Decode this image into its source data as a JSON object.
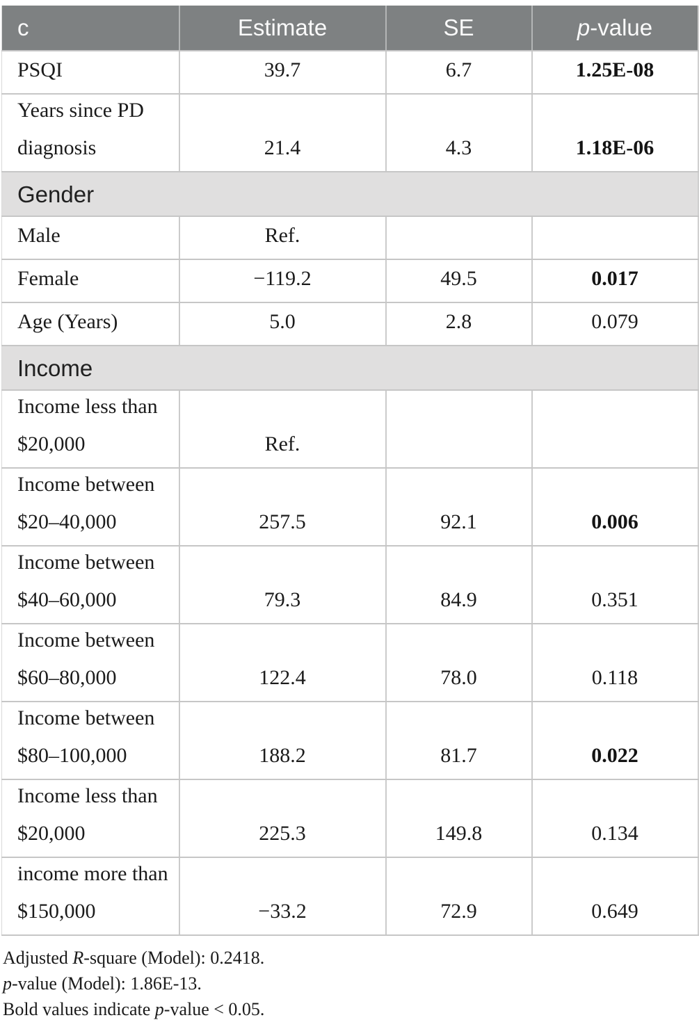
{
  "colors": {
    "header_bg": "#7e8182",
    "section_bg": "#e0dfdf",
    "border": "#c6c6c6",
    "header_text": "#fafafa"
  },
  "table": {
    "header": {
      "c": "c",
      "estimate": "Estimate",
      "se": "SE",
      "pvalue_italic": "p",
      "pvalue_rest": "-value"
    },
    "rows": [
      {
        "type": "data",
        "label_lines": [
          "PSQI"
        ],
        "estimate": "39.7",
        "se": "6.7",
        "pvalue": "1.25E-08",
        "pvalue_bold": true
      },
      {
        "type": "data",
        "label_lines": [
          "Years since PD",
          "diagnosis"
        ],
        "estimate": "21.4",
        "se": "4.3",
        "pvalue": "1.18E-06",
        "pvalue_bold": true
      },
      {
        "type": "section",
        "label": "Gender"
      },
      {
        "type": "data",
        "label_lines": [
          "Male"
        ],
        "estimate": "Ref.",
        "se": "",
        "pvalue": "",
        "pvalue_bold": false
      },
      {
        "type": "data",
        "label_lines": [
          "Female"
        ],
        "estimate": "−119.2",
        "se": "49.5",
        "pvalue": "0.017",
        "pvalue_bold": true
      },
      {
        "type": "data",
        "label_lines": [
          "Age (Years)"
        ],
        "estimate": "5.0",
        "se": "2.8",
        "pvalue": "0.079",
        "pvalue_bold": false
      },
      {
        "type": "section",
        "label": "Income"
      },
      {
        "type": "data",
        "label_lines": [
          "Income less than",
          "$20,000"
        ],
        "estimate": "Ref.",
        "se": "",
        "pvalue": "",
        "pvalue_bold": false
      },
      {
        "type": "data",
        "label_lines": [
          "Income between",
          "$20–40,000"
        ],
        "estimate": "257.5",
        "se": "92.1",
        "pvalue": "0.006",
        "pvalue_bold": true
      },
      {
        "type": "data",
        "label_lines": [
          "Income between",
          "$40–60,000"
        ],
        "estimate": "79.3",
        "se": "84.9",
        "pvalue": "0.351",
        "pvalue_bold": false
      },
      {
        "type": "data",
        "label_lines": [
          "Income between",
          "$60–80,000"
        ],
        "estimate": "122.4",
        "se": "78.0",
        "pvalue": "0.118",
        "pvalue_bold": false
      },
      {
        "type": "data",
        "label_lines": [
          "Income between",
          "$80–100,000"
        ],
        "estimate": "188.2",
        "se": "81.7",
        "pvalue": "0.022",
        "pvalue_bold": true
      },
      {
        "type": "data",
        "label_lines": [
          "Income less than",
          "$20,000"
        ],
        "estimate": "225.3",
        "se": "149.8",
        "pvalue": "0.134",
        "pvalue_bold": false
      },
      {
        "type": "data",
        "label_lines": [
          "income more than",
          "$150,000"
        ],
        "estimate": "−33.2",
        "se": "72.9",
        "pvalue": "0.649",
        "pvalue_bold": false
      }
    ]
  },
  "footnotes": {
    "line1_pre": "Adjusted ",
    "line1_italic": "R",
    "line1_post": "-square (Model): 0.2418.",
    "line2_pre": "",
    "line2_italic": "p",
    "line2_post": "-value (Model): 1.86E-13.",
    "line3_pre": "Bold values indicate ",
    "line3_italic": "p",
    "line3_post": "-value < 0.05."
  }
}
